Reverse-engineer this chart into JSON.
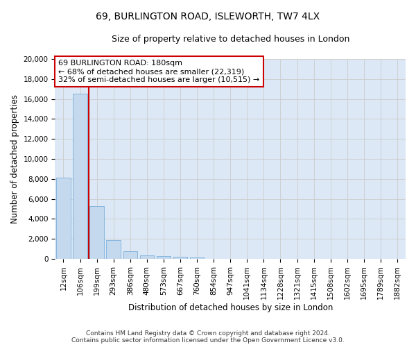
{
  "title": "69, BURLINGTON ROAD, ISLEWORTH, TW7 4LX",
  "subtitle": "Size of property relative to detached houses in London",
  "xlabel": "Distribution of detached houses by size in London",
  "ylabel": "Number of detached properties",
  "categories": [
    "12sqm",
    "106sqm",
    "199sqm",
    "293sqm",
    "386sqm",
    "480sqm",
    "573sqm",
    "667sqm",
    "760sqm",
    "854sqm",
    "947sqm",
    "1041sqm",
    "1134sqm",
    "1228sqm",
    "1321sqm",
    "1415sqm",
    "1508sqm",
    "1602sqm",
    "1695sqm",
    "1789sqm",
    "1882sqm"
  ],
  "values": [
    8100,
    16500,
    5300,
    1850,
    750,
    330,
    250,
    200,
    150,
    0,
    0,
    0,
    0,
    0,
    0,
    0,
    0,
    0,
    0,
    0,
    0
  ],
  "bar_color": "#c5d9ee",
  "bar_edge_color": "#7aafda",
  "vline_x": 1.5,
  "annotation_text": "69 BURLINGTON ROAD: 180sqm\n← 68% of detached houses are smaller (22,319)\n32% of semi-detached houses are larger (10,515) →",
  "annotation_box_color": "#ffffff",
  "annotation_box_edge_color": "#cc0000",
  "vline_color": "#cc0000",
  "ylim": [
    0,
    20000
  ],
  "yticks": [
    0,
    2000,
    4000,
    6000,
    8000,
    10000,
    12000,
    14000,
    16000,
    18000,
    20000
  ],
  "grid_color": "#cccccc",
  "bg_color": "#dce8f5",
  "footer": "Contains HM Land Registry data © Crown copyright and database right 2024.\nContains public sector information licensed under the Open Government Licence v3.0.",
  "title_fontsize": 10,
  "subtitle_fontsize": 9,
  "xlabel_fontsize": 8.5,
  "ylabel_fontsize": 8.5,
  "annotation_fontsize": 8,
  "tick_fontsize": 7.5
}
